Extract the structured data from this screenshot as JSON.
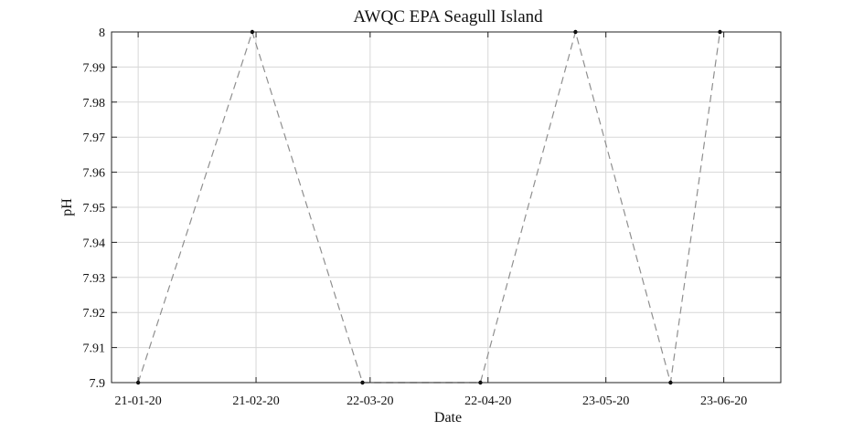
{
  "chart_data": {
    "type": "line",
    "title": "AWQC EPA Seagull Island",
    "xlabel": "Date",
    "ylabel": "pH",
    "x_tick_labels": [
      "21-01-20",
      "21-02-20",
      "22-03-20",
      "22-04-20",
      "23-05-20",
      "23-06-20"
    ],
    "x_tick_dates": [
      "2020-01-21",
      "2020-02-21",
      "2020-03-22",
      "2020-04-22",
      "2020-05-23",
      "2020-06-23"
    ],
    "y_tick_labels": [
      "7.9",
      "7.91",
      "7.92",
      "7.93",
      "7.94",
      "7.95",
      "7.96",
      "7.97",
      "7.98",
      "7.99",
      "8"
    ],
    "xlim": [
      "2020-01-14",
      "2020-07-08"
    ],
    "ylim": [
      7.9,
      8.0
    ],
    "grid": true,
    "series": [
      {
        "x": [
          "2020-01-21",
          "2020-02-20",
          "2020-03-20",
          "2020-04-20",
          "2020-05-15",
          "2020-06-09",
          "2020-06-22"
        ],
        "values": [
          7.9,
          8.0,
          7.9,
          7.9,
          8.0,
          7.9,
          8.0
        ],
        "color": "#8f8f8f",
        "line_style": "dashed",
        "marker_color": "#000000"
      }
    ]
  }
}
